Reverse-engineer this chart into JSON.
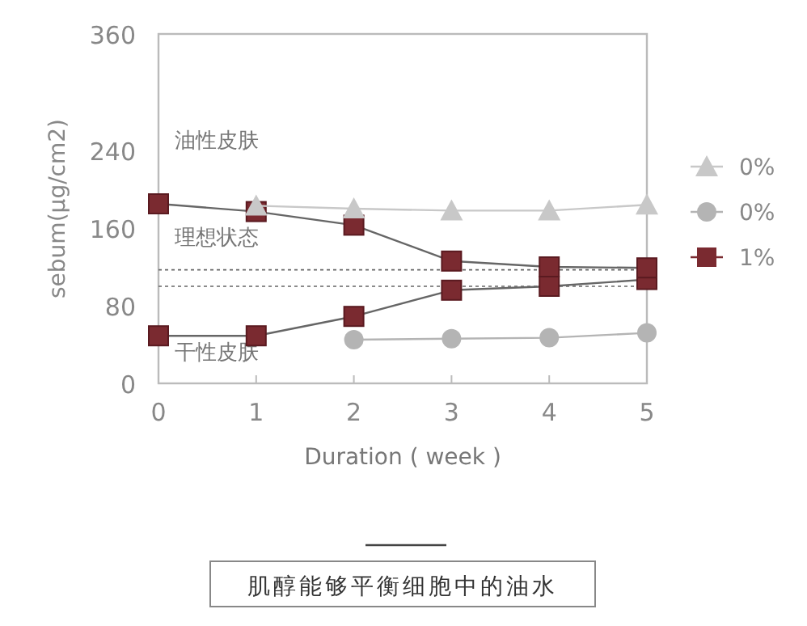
{
  "chart_data": {
    "type": "line",
    "title": "肌醇能够平衡细胞中的油水",
    "xlabel": "Duration ( week )",
    "ylabel": "sebum(μg/cm2)",
    "x": [
      0,
      1,
      2,
      3,
      4,
      5
    ],
    "xlim": [
      0,
      5
    ],
    "xticks": [
      0,
      1,
      2,
      3,
      4,
      5
    ],
    "ylim": [
      0,
      360
    ],
    "yticks": [
      0,
      80,
      160,
      240,
      360
    ],
    "series": [
      {
        "name": "0%",
        "color": "#c8c8c8",
        "marker": "triangle",
        "values": [
          null,
          183,
          180,
          178,
          178,
          184
        ]
      },
      {
        "name": "0%",
        "color": "#b4b4b4",
        "marker": "circle",
        "values": [
          null,
          null,
          45,
          46,
          47,
          52
        ]
      },
      {
        "name": "1%",
        "color": "#7a2a30",
        "marker": "square",
        "values": [
          185,
          177,
          163,
          126,
          120,
          119
        ]
      },
      {
        "color": "#7a2a30",
        "marker": "square",
        "values": [
          49,
          49,
          69,
          96,
          100,
          107
        ]
      }
    ],
    "ref_lines": [
      {
        "axis": "y",
        "value": 117,
        "line_style": "dotted",
        "color": "#666666"
      },
      {
        "axis": "y",
        "value": 100,
        "line_style": "dotted",
        "color": "#666666"
      }
    ],
    "annotations": [
      "油性皮肤",
      "理想状态",
      "干性皮肤"
    ],
    "legend": "right",
    "grid": false
  }
}
